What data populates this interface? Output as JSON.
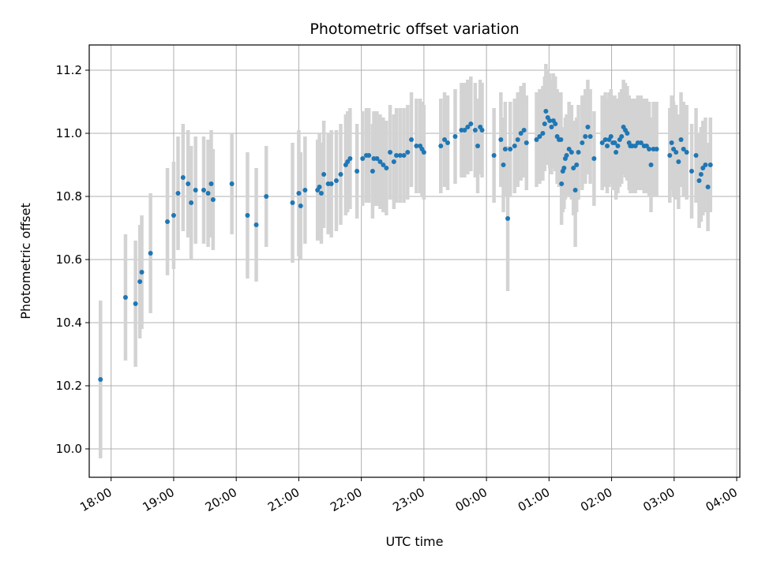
{
  "chart_data": {
    "type": "scatter",
    "title": "Photometric offset variation",
    "xlabel": "UTC time",
    "ylabel": "Photometric offset",
    "x_unit": "hours",
    "xlim": [
      17.65,
      28.05
    ],
    "ylim": [
      9.91,
      11.28
    ],
    "xticks": [
      {
        "value": 18,
        "label": "18:00"
      },
      {
        "value": 19,
        "label": "19:00"
      },
      {
        "value": 20,
        "label": "20:00"
      },
      {
        "value": 21,
        "label": "21:00"
      },
      {
        "value": 22,
        "label": "22:00"
      },
      {
        "value": 23,
        "label": "23:00"
      },
      {
        "value": 24,
        "label": "00:00"
      },
      {
        "value": 25,
        "label": "01:00"
      },
      {
        "value": 26,
        "label": "02:00"
      },
      {
        "value": 27,
        "label": "03:00"
      },
      {
        "value": 28,
        "label": "04:00"
      }
    ],
    "yticks": [
      {
        "value": 10.0,
        "label": "10.0"
      },
      {
        "value": 10.2,
        "label": "10.2"
      },
      {
        "value": 10.4,
        "label": "10.4"
      },
      {
        "value": 10.6,
        "label": "10.6"
      },
      {
        "value": 10.8,
        "label": "10.8"
      },
      {
        "value": 11.0,
        "label": "11.0"
      },
      {
        "value": 11.2,
        "label": "11.2"
      }
    ],
    "grid": true,
    "colors": {
      "points": "#1f77b4",
      "errorbars": "#d3d3d3",
      "grid": "#b0b0b0"
    },
    "points": [
      [
        17.83,
        10.22,
        0.25
      ],
      [
        18.23,
        10.48,
        0.2
      ],
      [
        18.39,
        10.46,
        0.2
      ],
      [
        18.46,
        10.53,
        0.18
      ],
      [
        18.49,
        10.56,
        0.18
      ],
      [
        18.63,
        10.62,
        0.19
      ],
      [
        18.9,
        10.72,
        0.17
      ],
      [
        19.0,
        10.74,
        0.17
      ],
      [
        19.07,
        10.81,
        0.18
      ],
      [
        19.15,
        10.86,
        0.17
      ],
      [
        19.23,
        10.84,
        0.17
      ],
      [
        19.28,
        10.78,
        0.18
      ],
      [
        19.35,
        10.82,
        0.17
      ],
      [
        19.48,
        10.82,
        0.17
      ],
      [
        19.55,
        10.81,
        0.17
      ],
      [
        19.6,
        10.84,
        0.17
      ],
      [
        19.63,
        10.79,
        0.16
      ],
      [
        19.93,
        10.84,
        0.16
      ],
      [
        20.18,
        10.74,
        0.2
      ],
      [
        20.32,
        10.71,
        0.18
      ],
      [
        20.48,
        10.8,
        0.16
      ],
      [
        20.9,
        10.78,
        0.19
      ],
      [
        21.0,
        10.81,
        0.2
      ],
      [
        21.03,
        10.77,
        0.17
      ],
      [
        21.1,
        10.82,
        0.17
      ],
      [
        21.3,
        10.82,
        0.16
      ],
      [
        21.33,
        10.83,
        0.17
      ],
      [
        21.36,
        10.81,
        0.16
      ],
      [
        21.4,
        10.87,
        0.17
      ],
      [
        21.47,
        10.84,
        0.16
      ],
      [
        21.52,
        10.84,
        0.17
      ],
      [
        21.6,
        10.85,
        0.16
      ],
      [
        21.67,
        10.87,
        0.16
      ],
      [
        21.75,
        10.9,
        0.16
      ],
      [
        21.78,
        10.91,
        0.16
      ],
      [
        21.82,
        10.92,
        0.16
      ],
      [
        21.93,
        10.88,
        0.15
      ],
      [
        22.02,
        10.92,
        0.15
      ],
      [
        22.08,
        10.93,
        0.15
      ],
      [
        22.12,
        10.93,
        0.15
      ],
      [
        22.18,
        10.88,
        0.15
      ],
      [
        22.2,
        10.92,
        0.15
      ],
      [
        22.25,
        10.92,
        0.15
      ],
      [
        22.3,
        10.91,
        0.15
      ],
      [
        22.35,
        10.9,
        0.15
      ],
      [
        22.4,
        10.89,
        0.15
      ],
      [
        22.46,
        10.94,
        0.15
      ],
      [
        22.52,
        10.91,
        0.15
      ],
      [
        22.56,
        10.93,
        0.15
      ],
      [
        22.62,
        10.93,
        0.15
      ],
      [
        22.68,
        10.93,
        0.15
      ],
      [
        22.74,
        10.94,
        0.15
      ],
      [
        22.8,
        10.98,
        0.15
      ],
      [
        22.88,
        10.96,
        0.15
      ],
      [
        22.94,
        10.96,
        0.15
      ],
      [
        22.97,
        10.95,
        0.15
      ],
      [
        23.0,
        10.94,
        0.15
      ],
      [
        23.27,
        10.96,
        0.15
      ],
      [
        23.33,
        10.98,
        0.15
      ],
      [
        23.38,
        10.97,
        0.15
      ],
      [
        23.5,
        10.99,
        0.15
      ],
      [
        23.6,
        11.01,
        0.15
      ],
      [
        23.65,
        11.01,
        0.15
      ],
      [
        23.7,
        11.02,
        0.15
      ],
      [
        23.75,
        11.03,
        0.15
      ],
      [
        23.82,
        11.01,
        0.15
      ],
      [
        23.86,
        10.96,
        0.15
      ],
      [
        23.9,
        11.02,
        0.15
      ],
      [
        23.93,
        11.01,
        0.15
      ],
      [
        24.12,
        10.93,
        0.15
      ],
      [
        24.23,
        10.98,
        0.15
      ],
      [
        24.27,
        10.9,
        0.15
      ],
      [
        24.3,
        10.95,
        0.15
      ],
      [
        24.34,
        10.73,
        0.23
      ],
      [
        24.38,
        10.95,
        0.15
      ],
      [
        24.45,
        10.96,
        0.15
      ],
      [
        24.5,
        10.98,
        0.15
      ],
      [
        24.55,
        11.0,
        0.15
      ],
      [
        24.6,
        11.01,
        0.15
      ],
      [
        24.64,
        10.97,
        0.15
      ],
      [
        24.8,
        10.98,
        0.15
      ],
      [
        24.85,
        10.99,
        0.15
      ],
      [
        24.9,
        11.0,
        0.15
      ],
      [
        24.93,
        11.03,
        0.15
      ],
      [
        24.95,
        11.07,
        0.15
      ],
      [
        24.98,
        11.05,
        0.15
      ],
      [
        25.01,
        11.04,
        0.15
      ],
      [
        25.04,
        11.02,
        0.15
      ],
      [
        25.07,
        11.04,
        0.15
      ],
      [
        25.1,
        11.03,
        0.15
      ],
      [
        25.13,
        10.99,
        0.15
      ],
      [
        25.16,
        10.98,
        0.15
      ],
      [
        25.19,
        10.98,
        0.15
      ],
      [
        25.2,
        10.84,
        0.13
      ],
      [
        25.22,
        10.88,
        0.13
      ],
      [
        25.24,
        10.89,
        0.13
      ],
      [
        25.26,
        10.92,
        0.13
      ],
      [
        25.28,
        10.93,
        0.13
      ],
      [
        25.32,
        10.95,
        0.15
      ],
      [
        25.36,
        10.94,
        0.15
      ],
      [
        25.39,
        10.89,
        0.15
      ],
      [
        25.42,
        10.82,
        0.18
      ],
      [
        25.44,
        10.9,
        0.15
      ],
      [
        25.47,
        10.94,
        0.15
      ],
      [
        25.53,
        10.97,
        0.15
      ],
      [
        25.58,
        10.99,
        0.15
      ],
      [
        25.62,
        11.02,
        0.15
      ],
      [
        25.66,
        10.99,
        0.15
      ],
      [
        25.72,
        10.92,
        0.15
      ],
      [
        25.85,
        10.97,
        0.15
      ],
      [
        25.9,
        10.98,
        0.15
      ],
      [
        25.93,
        10.96,
        0.15
      ],
      [
        25.96,
        10.98,
        0.15
      ],
      [
        25.99,
        10.99,
        0.15
      ],
      [
        26.02,
        10.97,
        0.15
      ],
      [
        26.05,
        10.97,
        0.15
      ],
      [
        26.07,
        10.94,
        0.15
      ],
      [
        26.1,
        10.96,
        0.15
      ],
      [
        26.13,
        10.98,
        0.15
      ],
      [
        26.16,
        10.99,
        0.15
      ],
      [
        26.19,
        11.02,
        0.15
      ],
      [
        26.22,
        11.01,
        0.15
      ],
      [
        26.25,
        11.0,
        0.15
      ],
      [
        26.28,
        10.97,
        0.15
      ],
      [
        26.3,
        10.96,
        0.15
      ],
      [
        26.33,
        10.96,
        0.15
      ],
      [
        26.38,
        10.96,
        0.15
      ],
      [
        26.42,
        10.97,
        0.15
      ],
      [
        26.47,
        10.97,
        0.15
      ],
      [
        26.52,
        10.96,
        0.15
      ],
      [
        26.56,
        10.96,
        0.15
      ],
      [
        26.6,
        10.95,
        0.15
      ],
      [
        26.63,
        10.9,
        0.15
      ],
      [
        26.67,
        10.95,
        0.15
      ],
      [
        26.72,
        10.95,
        0.15
      ],
      [
        26.93,
        10.93,
        0.15
      ],
      [
        26.96,
        10.97,
        0.15
      ],
      [
        26.99,
        10.95,
        0.15
      ],
      [
        27.03,
        10.94,
        0.15
      ],
      [
        27.07,
        10.91,
        0.15
      ],
      [
        27.11,
        10.98,
        0.15
      ],
      [
        27.15,
        10.95,
        0.15
      ],
      [
        27.2,
        10.94,
        0.15
      ],
      [
        27.28,
        10.88,
        0.15
      ],
      [
        27.35,
        10.93,
        0.15
      ],
      [
        27.4,
        10.85,
        0.15
      ],
      [
        27.43,
        10.87,
        0.15
      ],
      [
        27.46,
        10.89,
        0.15
      ],
      [
        27.5,
        10.9,
        0.15
      ],
      [
        27.54,
        10.83,
        0.14
      ],
      [
        27.58,
        10.9,
        0.15
      ]
    ]
  }
}
